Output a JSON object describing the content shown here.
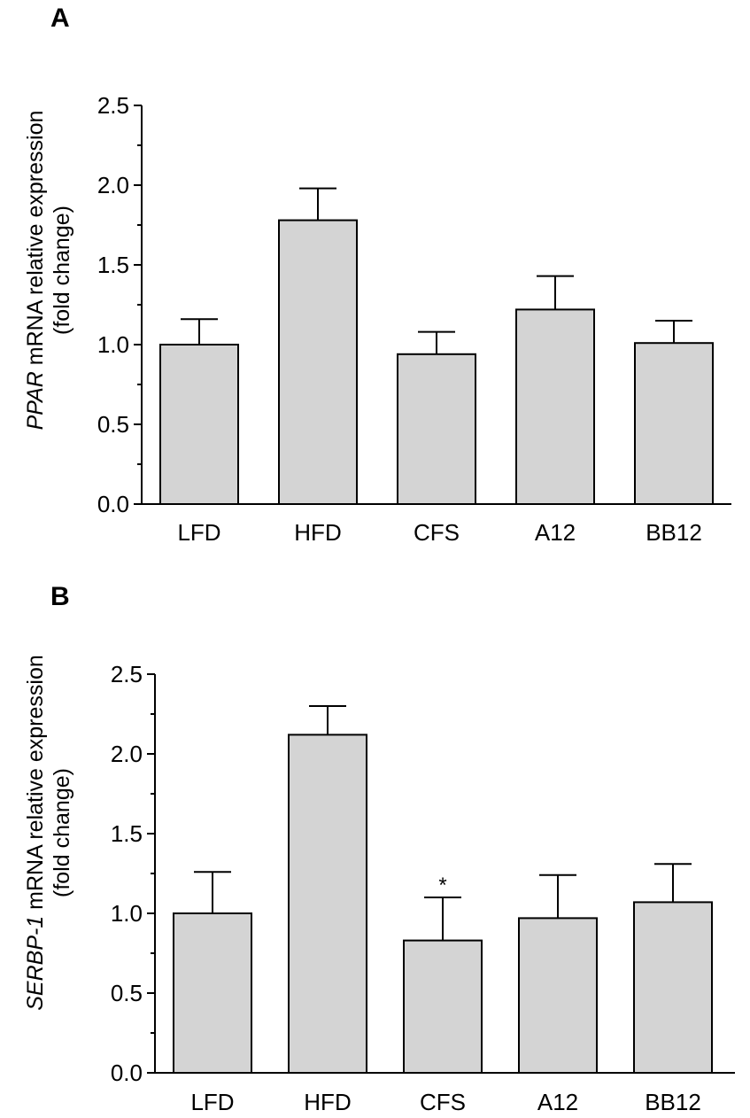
{
  "chart_data": [
    {
      "type": "bar",
      "panel_label": "A",
      "categories": [
        "LFD",
        "HFD",
        "CFS",
        "A12",
        "BB12"
      ],
      "values": [
        1.0,
        1.78,
        0.94,
        1.22,
        1.01
      ],
      "errors": [
        0.16,
        0.2,
        0.14,
        0.21,
        0.14
      ],
      "ylabel_italic": "PPAR",
      "ylabel_rest": " mRNA relative  expression",
      "ylabel_line2": "(fold change)",
      "ylim": [
        0,
        2.5
      ],
      "yticks": [
        "0.0",
        "0.5",
        "1.0",
        "1.5",
        "2.0",
        "2.5"
      ],
      "annotations": []
    },
    {
      "type": "bar",
      "panel_label": "B",
      "categories": [
        "LFD",
        "HFD",
        "CFS",
        "A12",
        "BB12"
      ],
      "values": [
        1.0,
        2.12,
        0.83,
        0.97,
        1.07
      ],
      "errors": [
        0.26,
        0.18,
        0.27,
        0.27,
        0.24
      ],
      "ylabel_italic": "SERBP-1",
      "ylabel_rest": " mRNA relative expression",
      "ylabel_line2": "(fold change)",
      "ylim": [
        0,
        2.5
      ],
      "yticks": [
        "0.0",
        "0.5",
        "1.0",
        "1.5",
        "2.0",
        "2.5"
      ],
      "annotations": [
        {
          "category": "CFS",
          "text": "*"
        }
      ]
    }
  ]
}
